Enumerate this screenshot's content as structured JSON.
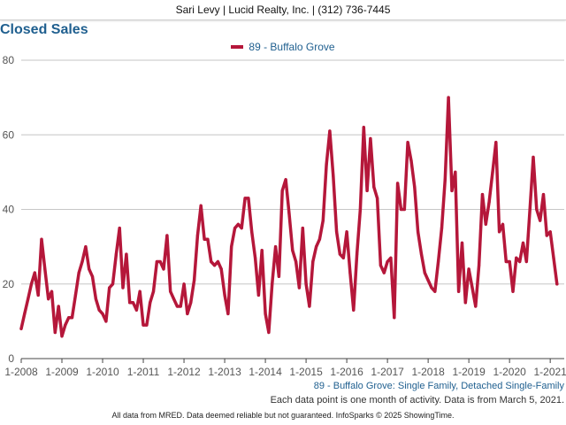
{
  "header": {
    "text": "Sari Levy | Lucid Realty, Inc. | (312) 736-7445"
  },
  "footer": {
    "subtitle": "89 - Buffalo Grove: Single Family, Detached Single-Family",
    "note": "Each data point is one month of activity. Data is from March 5, 2021.",
    "disclaimer": "All data from MRED. Data deemed reliable but not guaranteed. InfoSparks © 2025 ShowingTime."
  },
  "chart_data": {
    "type": "line",
    "title": "Closed Sales",
    "xlabel": "",
    "ylabel": "",
    "ylim": [
      0,
      80
    ],
    "yticks": [
      0,
      20,
      40,
      60,
      80
    ],
    "x_start": "2008-01",
    "x_end": "2021-02",
    "x_tick_labels": [
      "1-2008",
      "1-2009",
      "1-2010",
      "1-2011",
      "1-2012",
      "1-2013",
      "1-2014",
      "1-2015",
      "1-2016",
      "1-2017",
      "1-2018",
      "1-2019",
      "1-2020",
      "1-2021"
    ],
    "grid": true,
    "legend_position": "top-center",
    "color": "#b5173a",
    "series": [
      {
        "name": "89 - Buffalo Grove",
        "values": [
          8,
          12,
          16,
          20,
          23,
          17,
          32,
          24,
          16,
          18,
          7,
          14,
          6,
          9,
          11,
          11,
          17,
          23,
          26,
          30,
          24,
          22,
          16,
          13,
          12,
          10,
          19,
          20,
          28,
          35,
          19,
          28,
          15,
          15,
          13,
          18,
          9,
          9,
          15,
          18,
          26,
          26,
          24,
          33,
          18,
          16,
          14,
          14,
          20,
          12,
          15,
          21,
          33,
          41,
          32,
          32,
          26,
          25,
          26,
          24,
          17,
          12,
          30,
          35,
          36,
          35,
          43,
          43,
          34,
          27,
          17,
          29,
          12,
          7,
          20,
          30,
          22,
          45,
          48,
          39,
          29,
          26,
          19,
          35,
          20,
          14,
          26,
          30,
          32,
          37,
          52,
          61,
          49,
          34,
          28,
          27,
          34,
          23,
          13,
          28,
          40,
          62,
          45,
          59,
          46,
          43,
          25,
          23,
          26,
          27,
          11,
          47,
          40,
          40,
          58,
          53,
          46,
          34,
          28,
          23,
          21,
          19,
          18,
          26,
          35,
          48,
          70,
          45,
          50,
          18,
          31,
          15,
          24,
          19,
          14,
          25,
          44,
          36,
          42,
          50,
          58,
          34,
          36,
          26,
          26,
          18,
          27,
          26,
          31,
          26,
          40,
          54,
          40,
          37,
          44,
          33,
          34,
          27,
          20
        ]
      }
    ]
  }
}
